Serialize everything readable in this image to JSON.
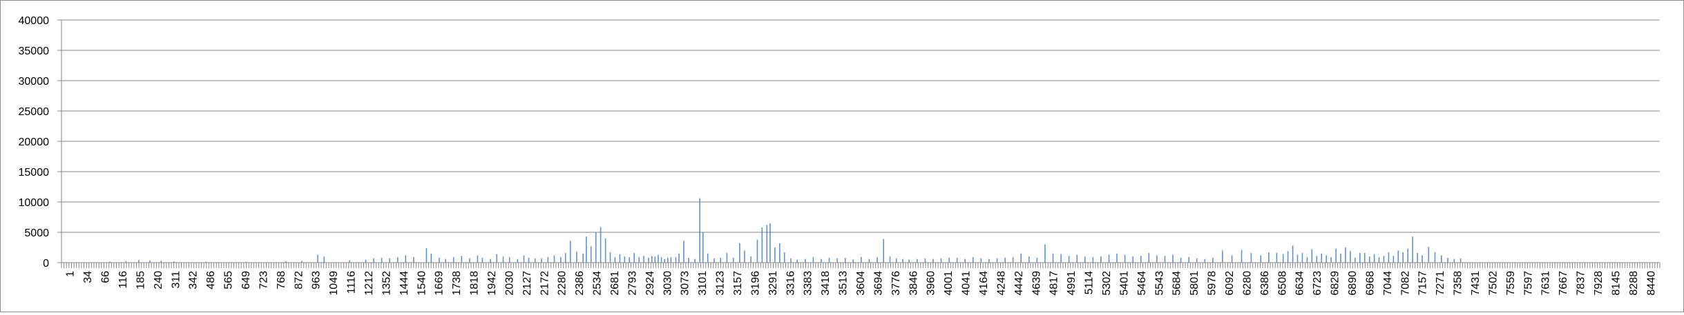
{
  "chart_data": {
    "type": "bar",
    "title": "",
    "xlabel": "",
    "ylabel": "",
    "ylim": [
      0,
      40000
    ],
    "yticks": [
      0,
      5000,
      10000,
      15000,
      20000,
      25000,
      30000,
      35000,
      40000
    ],
    "x_range": [
      1,
      8486
    ],
    "xtick_labels": [
      "1",
      "34",
      "66",
      "116",
      "185",
      "240",
      "311",
      "342",
      "486",
      "565",
      "649",
      "723",
      "768",
      "872",
      "963",
      "1049",
      "1116",
      "1212",
      "1352",
      "1444",
      "1540",
      "1669",
      "1738",
      "1818",
      "1942",
      "2030",
      "2127",
      "2172",
      "2280",
      "2386",
      "2534",
      "2681",
      "2793",
      "2924",
      "3030",
      "3073",
      "3101",
      "3123",
      "3157",
      "3196",
      "3291",
      "3316",
      "3383",
      "3418",
      "3513",
      "3604",
      "3694",
      "3776",
      "3846",
      "3960",
      "4001",
      "4041",
      "4164",
      "4248",
      "4442",
      "4639",
      "4817",
      "4991",
      "5114",
      "5302",
      "5401",
      "5464",
      "5543",
      "5684",
      "5801",
      "5978",
      "6092",
      "6280",
      "6386",
      "6508",
      "6634",
      "6723",
      "6829",
      "6890",
      "6968",
      "7044",
      "7082",
      "7157",
      "7271",
      "7358",
      "7431",
      "7502",
      "7559",
      "7597",
      "7631",
      "7667",
      "7837",
      "7928",
      "8145",
      "8288",
      "8440"
    ],
    "grid": true,
    "legend": "none",
    "bar_color": "#4a7ebb",
    "gridline_color": "#868686",
    "series": [
      {
        "values": [
          [
            0.03,
            180
          ],
          [
            0.04,
            250
          ],
          [
            0.048,
            420
          ],
          [
            0.055,
            380
          ],
          [
            0.062,
            300
          ],
          [
            0.07,
            200
          ],
          [
            0.09,
            160
          ],
          [
            0.115,
            150
          ],
          [
            0.14,
            230
          ],
          [
            0.15,
            300
          ],
          [
            0.16,
            1300
          ],
          [
            0.164,
            1000
          ],
          [
            0.18,
            400
          ],
          [
            0.19,
            500
          ],
          [
            0.195,
            700
          ],
          [
            0.2,
            800
          ],
          [
            0.205,
            700
          ],
          [
            0.21,
            900
          ],
          [
            0.215,
            1200
          ],
          [
            0.22,
            900
          ],
          [
            0.228,
            2400
          ],
          [
            0.231,
            1500
          ],
          [
            0.236,
            800
          ],
          [
            0.24,
            600
          ],
          [
            0.245,
            900
          ],
          [
            0.25,
            1100
          ],
          [
            0.255,
            700
          ],
          [
            0.26,
            1200
          ],
          [
            0.263,
            800
          ],
          [
            0.268,
            600
          ],
          [
            0.272,
            1400
          ],
          [
            0.276,
            1000
          ],
          [
            0.28,
            900
          ],
          [
            0.285,
            600
          ],
          [
            0.289,
            1200
          ],
          [
            0.292,
            800
          ],
          [
            0.296,
            700
          ],
          [
            0.3,
            700
          ],
          [
            0.304,
            900
          ],
          [
            0.308,
            1200
          ],
          [
            0.312,
            900
          ],
          [
            0.315,
            1600
          ],
          [
            0.318,
            3600
          ],
          [
            0.322,
            1800
          ],
          [
            0.326,
            1500
          ],
          [
            0.328,
            4300
          ],
          [
            0.331,
            2700
          ],
          [
            0.334,
            5000
          ],
          [
            0.337,
            5900
          ],
          [
            0.34,
            4000
          ],
          [
            0.343,
            1700
          ],
          [
            0.346,
            900
          ],
          [
            0.349,
            1400
          ],
          [
            0.352,
            1000
          ],
          [
            0.355,
            900
          ],
          [
            0.358,
            1600
          ],
          [
            0.361,
            900
          ],
          [
            0.364,
            1100
          ],
          [
            0.367,
            800
          ],
          [
            0.369,
            1100
          ],
          [
            0.371,
            1000
          ],
          [
            0.373,
            1300
          ],
          [
            0.375,
            900
          ],
          [
            0.377,
            600
          ],
          [
            0.379,
            800
          ],
          [
            0.381,
            900
          ],
          [
            0.384,
            900
          ],
          [
            0.386,
            1500
          ],
          [
            0.389,
            3600
          ],
          [
            0.392,
            800
          ],
          [
            0.396,
            600
          ],
          [
            0.399,
            10600
          ],
          [
            0.401,
            5000
          ],
          [
            0.404,
            1500
          ],
          [
            0.408,
            700
          ],
          [
            0.412,
            800
          ],
          [
            0.416,
            1600
          ],
          [
            0.42,
            800
          ],
          [
            0.424,
            3200
          ],
          [
            0.427,
            2000
          ],
          [
            0.431,
            1000
          ],
          [
            0.435,
            3800
          ],
          [
            0.438,
            5800
          ],
          [
            0.441,
            6200
          ],
          [
            0.443,
            6500
          ],
          [
            0.446,
            2500
          ],
          [
            0.449,
            3200
          ],
          [
            0.452,
            1700
          ],
          [
            0.456,
            700
          ],
          [
            0.46,
            500
          ],
          [
            0.465,
            600
          ],
          [
            0.47,
            900
          ],
          [
            0.475,
            600
          ],
          [
            0.48,
            800
          ],
          [
            0.485,
            700
          ],
          [
            0.49,
            800
          ],
          [
            0.495,
            500
          ],
          [
            0.5,
            900
          ],
          [
            0.505,
            600
          ],
          [
            0.51,
            900
          ],
          [
            0.514,
            3900
          ],
          [
            0.518,
            1000
          ],
          [
            0.522,
            700
          ],
          [
            0.526,
            600
          ],
          [
            0.53,
            500
          ],
          [
            0.535,
            600
          ],
          [
            0.54,
            700
          ],
          [
            0.545,
            600
          ],
          [
            0.55,
            700
          ],
          [
            0.555,
            800
          ],
          [
            0.56,
            800
          ],
          [
            0.565,
            600
          ],
          [
            0.57,
            900
          ],
          [
            0.575,
            700
          ],
          [
            0.58,
            600
          ],
          [
            0.585,
            700
          ],
          [
            0.59,
            800
          ],
          [
            0.595,
            900
          ],
          [
            0.6,
            1500
          ],
          [
            0.605,
            1000
          ],
          [
            0.61,
            800
          ],
          [
            0.615,
            3000
          ],
          [
            0.62,
            1500
          ],
          [
            0.625,
            1400
          ],
          [
            0.63,
            1100
          ],
          [
            0.635,
            1300
          ],
          [
            0.64,
            1000
          ],
          [
            0.645,
            900
          ],
          [
            0.65,
            1000
          ],
          [
            0.655,
            1300
          ],
          [
            0.66,
            1500
          ],
          [
            0.665,
            1300
          ],
          [
            0.67,
            1000
          ],
          [
            0.675,
            1100
          ],
          [
            0.68,
            1600
          ],
          [
            0.685,
            1200
          ],
          [
            0.69,
            1100
          ],
          [
            0.695,
            1300
          ],
          [
            0.7,
            800
          ],
          [
            0.705,
            900
          ],
          [
            0.71,
            700
          ],
          [
            0.715,
            600
          ],
          [
            0.72,
            800
          ],
          [
            0.726,
            2000
          ],
          [
            0.732,
            1200
          ],
          [
            0.738,
            2100
          ],
          [
            0.744,
            1600
          ],
          [
            0.75,
            1200
          ],
          [
            0.755,
            1700
          ],
          [
            0.76,
            1600
          ],
          [
            0.764,
            1400
          ],
          [
            0.767,
            1900
          ],
          [
            0.77,
            2800
          ],
          [
            0.773,
            1300
          ],
          [
            0.776,
            1600
          ],
          [
            0.779,
            900
          ],
          [
            0.782,
            2200
          ],
          [
            0.785,
            1100
          ],
          [
            0.788,
            1500
          ],
          [
            0.791,
            1200
          ],
          [
            0.794,
            900
          ],
          [
            0.797,
            2300
          ],
          [
            0.8,
            1500
          ],
          [
            0.803,
            2500
          ],
          [
            0.806,
            1900
          ],
          [
            0.809,
            800
          ],
          [
            0.812,
            1600
          ],
          [
            0.815,
            1600
          ],
          [
            0.818,
            1000
          ],
          [
            0.821,
            1400
          ],
          [
            0.824,
            900
          ],
          [
            0.827,
            1100
          ],
          [
            0.83,
            1700
          ],
          [
            0.833,
            1100
          ],
          [
            0.836,
            2000
          ],
          [
            0.839,
            1700
          ],
          [
            0.842,
            2300
          ],
          [
            0.845,
            4300
          ],
          [
            0.848,
            1600
          ],
          [
            0.851,
            1200
          ],
          [
            0.855,
            2600
          ],
          [
            0.859,
            1700
          ],
          [
            0.863,
            1200
          ],
          [
            0.867,
            800
          ],
          [
            0.871,
            600
          ],
          [
            0.875,
            700
          ]
        ]
      }
    ]
  }
}
